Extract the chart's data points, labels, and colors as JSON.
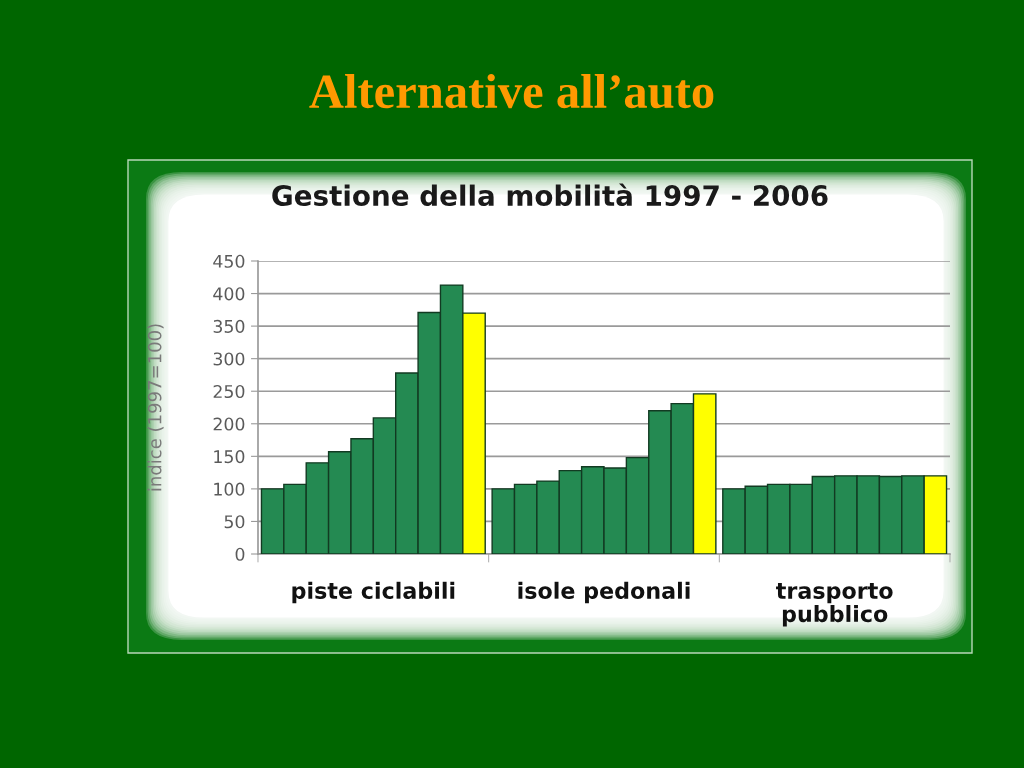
{
  "chart_data": {
    "type": "bar",
    "title": "Alternative all’auto",
    "subtitle": "Gestione della mobilità 1997 - 2006",
    "ylabel": "indice (1997=100)",
    "categories": [
      "piste ciclabili",
      "isole pedonali",
      "trasporto\npubblico"
    ],
    "series": [
      {
        "color": "#248a52",
        "values": [
          100,
          100,
          100
        ]
      },
      {
        "color": "#248a52",
        "values": [
          107,
          107,
          104
        ]
      },
      {
        "color": "#248a52",
        "values": [
          140,
          112,
          107
        ]
      },
      {
        "color": "#248a52",
        "values": [
          157,
          128,
          107
        ]
      },
      {
        "color": "#248a52",
        "values": [
          177,
          134,
          119
        ]
      },
      {
        "color": "#248a52",
        "values": [
          209,
          132,
          120
        ]
      },
      {
        "color": "#248a52",
        "values": [
          278,
          148,
          120
        ]
      },
      {
        "color": "#248a52",
        "values": [
          371,
          220,
          119
        ]
      },
      {
        "color": "#248a52",
        "values": [
          413,
          231,
          120
        ]
      },
      {
        "color": "#ffff00",
        "values": [
          370,
          246,
          120
        ]
      }
    ],
    "ylim": [
      0,
      450
    ],
    "yticks": [
      0,
      50,
      100,
      150,
      200,
      250,
      300,
      350,
      400,
      450
    ],
    "grid": "y"
  }
}
